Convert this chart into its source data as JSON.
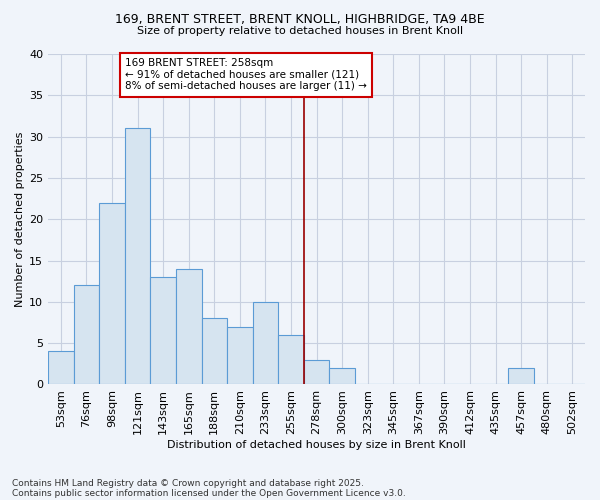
{
  "title1": "169, BRENT STREET, BRENT KNOLL, HIGHBRIDGE, TA9 4BE",
  "title2": "Size of property relative to detached houses in Brent Knoll",
  "xlabel": "Distribution of detached houses by size in Brent Knoll",
  "ylabel": "Number of detached properties",
  "categories": [
    "53sqm",
    "76sqm",
    "98sqm",
    "121sqm",
    "143sqm",
    "165sqm",
    "188sqm",
    "210sqm",
    "233sqm",
    "255sqm",
    "278sqm",
    "300sqm",
    "323sqm",
    "345sqm",
    "367sqm",
    "390sqm",
    "412sqm",
    "435sqm",
    "457sqm",
    "480sqm",
    "502sqm"
  ],
  "values": [
    4,
    12,
    22,
    31,
    13,
    14,
    8,
    7,
    10,
    6,
    3,
    2,
    0,
    0,
    0,
    0,
    0,
    0,
    2,
    0,
    0
  ],
  "bar_color": "#d6e4f0",
  "bar_edge_color": "#5b9bd5",
  "vline_x_idx": 9,
  "vline_color": "#990000",
  "annotation_text": "169 BRENT STREET: 258sqm\n← 91% of detached houses are smaller (121)\n8% of semi-detached houses are larger (11) →",
  "annotation_box_color": "#ffffff",
  "annotation_box_edge": "#cc0000",
  "background_color": "#f0f4fa",
  "plot_bg_color": "#f0f4fa",
  "grid_color": "#c8d0e0",
  "footer1": "Contains HM Land Registry data © Crown copyright and database right 2025.",
  "footer2": "Contains public sector information licensed under the Open Government Licence v3.0.",
  "ylim": [
    0,
    40
  ],
  "yticks": [
    0,
    5,
    10,
    15,
    20,
    25,
    30,
    35,
    40
  ]
}
